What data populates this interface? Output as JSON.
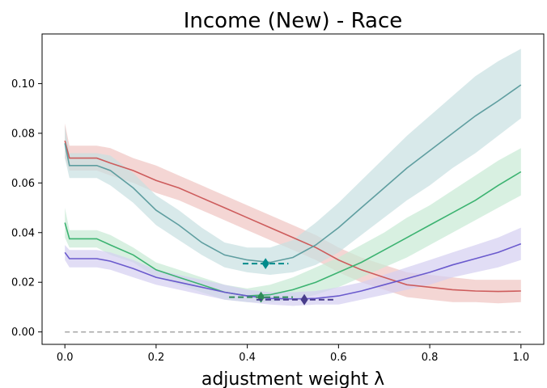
{
  "chart_data": {
    "type": "line",
    "title": "Income (New) - Race",
    "xlabel": "adjustment weight λ",
    "ylabel": "",
    "xlim": [
      -0.05,
      1.05
    ],
    "ylim": [
      -0.005,
      0.12
    ],
    "xticks": [
      0.0,
      0.2,
      0.4,
      0.6,
      0.8,
      1.0
    ],
    "xtick_labels": [
      "0.0",
      "0.2",
      "0.4",
      "0.6",
      "0.8",
      "1.0"
    ],
    "yticks": [
      0.0,
      0.02,
      0.04,
      0.06,
      0.08,
      0.1
    ],
    "ytick_labels": [
      "0.00",
      "0.02",
      "0.04",
      "0.06",
      "0.08",
      "0.10"
    ],
    "grid": false,
    "series": [
      {
        "color": "#cd5c5c",
        "band": "#f0c4c2",
        "points": [
          [
            0,
            0.077
          ],
          [
            0.01,
            0.07
          ],
          [
            0.03,
            0.07
          ],
          [
            0.07,
            0.07
          ],
          [
            0.1,
            0.068
          ],
          [
            0.15,
            0.065
          ],
          [
            0.2,
            0.061
          ],
          [
            0.25,
            0.058
          ],
          [
            0.3,
            0.054
          ],
          [
            0.35,
            0.05
          ],
          [
            0.4,
            0.046
          ],
          [
            0.45,
            0.042
          ],
          [
            0.5,
            0.038
          ],
          [
            0.55,
            0.034
          ],
          [
            0.6,
            0.029
          ],
          [
            0.65,
            0.025
          ],
          [
            0.7,
            0.022
          ],
          [
            0.75,
            0.019
          ],
          [
            0.8,
            0.018
          ],
          [
            0.85,
            0.017
          ],
          [
            0.9,
            0.0165
          ],
          [
            0.95,
            0.0163
          ],
          [
            1.0,
            0.0165
          ]
        ],
        "upper": [
          [
            0,
            0.084
          ],
          [
            0.01,
            0.075
          ],
          [
            0.03,
            0.075
          ],
          [
            0.07,
            0.075
          ],
          [
            0.1,
            0.074
          ],
          [
            0.15,
            0.07
          ],
          [
            0.2,
            0.067
          ],
          [
            0.25,
            0.063
          ],
          [
            0.3,
            0.059
          ],
          [
            0.35,
            0.055
          ],
          [
            0.4,
            0.051
          ],
          [
            0.45,
            0.047
          ],
          [
            0.5,
            0.043
          ],
          [
            0.55,
            0.039
          ],
          [
            0.6,
            0.034
          ],
          [
            0.65,
            0.03
          ],
          [
            0.7,
            0.027
          ],
          [
            0.75,
            0.024
          ],
          [
            0.8,
            0.023
          ],
          [
            0.85,
            0.022
          ],
          [
            0.9,
            0.021
          ],
          [
            0.95,
            0.021
          ],
          [
            1.0,
            0.021
          ]
        ],
        "lower": [
          [
            0,
            0.07
          ],
          [
            0.01,
            0.065
          ],
          [
            0.03,
            0.065
          ],
          [
            0.07,
            0.065
          ],
          [
            0.1,
            0.063
          ],
          [
            0.15,
            0.06
          ],
          [
            0.2,
            0.056
          ],
          [
            0.25,
            0.053
          ],
          [
            0.3,
            0.049
          ],
          [
            0.35,
            0.045
          ],
          [
            0.4,
            0.041
          ],
          [
            0.45,
            0.037
          ],
          [
            0.5,
            0.033
          ],
          [
            0.55,
            0.029
          ],
          [
            0.6,
            0.024
          ],
          [
            0.65,
            0.02
          ],
          [
            0.7,
            0.017
          ],
          [
            0.75,
            0.014
          ],
          [
            0.8,
            0.013
          ],
          [
            0.85,
            0.012
          ],
          [
            0.9,
            0.012
          ],
          [
            0.95,
            0.0115
          ],
          [
            1.0,
            0.012
          ]
        ]
      },
      {
        "color": "#5f9ea0",
        "band": "#c8e0e1",
        "points": [
          [
            0,
            0.076
          ],
          [
            0.01,
            0.067
          ],
          [
            0.03,
            0.067
          ],
          [
            0.07,
            0.067
          ],
          [
            0.1,
            0.065
          ],
          [
            0.15,
            0.058
          ],
          [
            0.2,
            0.049
          ],
          [
            0.25,
            0.043
          ],
          [
            0.3,
            0.036
          ],
          [
            0.35,
            0.031
          ],
          [
            0.4,
            0.029
          ],
          [
            0.45,
            0.028
          ],
          [
            0.5,
            0.03
          ],
          [
            0.55,
            0.035
          ],
          [
            0.6,
            0.042
          ],
          [
            0.65,
            0.05
          ],
          [
            0.7,
            0.058
          ],
          [
            0.75,
            0.066
          ],
          [
            0.8,
            0.073
          ],
          [
            0.85,
            0.08
          ],
          [
            0.9,
            0.087
          ],
          [
            0.95,
            0.093
          ],
          [
            1.0,
            0.0995
          ]
        ],
        "upper": [
          [
            0,
            0.083
          ],
          [
            0.01,
            0.072
          ],
          [
            0.03,
            0.072
          ],
          [
            0.07,
            0.072
          ],
          [
            0.1,
            0.071
          ],
          [
            0.15,
            0.064
          ],
          [
            0.2,
            0.055
          ],
          [
            0.25,
            0.049
          ],
          [
            0.3,
            0.042
          ],
          [
            0.35,
            0.036
          ],
          [
            0.4,
            0.034
          ],
          [
            0.45,
            0.034
          ],
          [
            0.5,
            0.037
          ],
          [
            0.55,
            0.044
          ],
          [
            0.6,
            0.052
          ],
          [
            0.65,
            0.061
          ],
          [
            0.7,
            0.07
          ],
          [
            0.75,
            0.079
          ],
          [
            0.8,
            0.087
          ],
          [
            0.85,
            0.095
          ],
          [
            0.9,
            0.103
          ],
          [
            0.95,
            0.109
          ],
          [
            1.0,
            0.114
          ]
        ],
        "lower": [
          [
            0,
            0.07
          ],
          [
            0.01,
            0.062
          ],
          [
            0.03,
            0.062
          ],
          [
            0.07,
            0.062
          ],
          [
            0.1,
            0.059
          ],
          [
            0.15,
            0.052
          ],
          [
            0.2,
            0.043
          ],
          [
            0.25,
            0.037
          ],
          [
            0.3,
            0.031
          ],
          [
            0.35,
            0.026
          ],
          [
            0.4,
            0.024
          ],
          [
            0.45,
            0.023
          ],
          [
            0.5,
            0.024
          ],
          [
            0.55,
            0.027
          ],
          [
            0.6,
            0.032
          ],
          [
            0.65,
            0.039
          ],
          [
            0.7,
            0.046
          ],
          [
            0.75,
            0.053
          ],
          [
            0.8,
            0.059
          ],
          [
            0.85,
            0.066
          ],
          [
            0.9,
            0.072
          ],
          [
            0.95,
            0.079
          ],
          [
            1.0,
            0.086
          ]
        ]
      },
      {
        "color": "#3cb371",
        "band": "#c7e9d4",
        "points": [
          [
            0,
            0.044
          ],
          [
            0.01,
            0.0375
          ],
          [
            0.03,
            0.0375
          ],
          [
            0.07,
            0.0375
          ],
          [
            0.1,
            0.035
          ],
          [
            0.15,
            0.031
          ],
          [
            0.2,
            0.025
          ],
          [
            0.25,
            0.022
          ],
          [
            0.3,
            0.019
          ],
          [
            0.35,
            0.016
          ],
          [
            0.4,
            0.0145
          ],
          [
            0.45,
            0.015
          ],
          [
            0.5,
            0.017
          ],
          [
            0.55,
            0.02
          ],
          [
            0.6,
            0.024
          ],
          [
            0.65,
            0.028
          ],
          [
            0.7,
            0.033
          ],
          [
            0.75,
            0.038
          ],
          [
            0.8,
            0.043
          ],
          [
            0.85,
            0.048
          ],
          [
            0.9,
            0.053
          ],
          [
            0.95,
            0.059
          ],
          [
            1.0,
            0.0645
          ]
        ],
        "upper": [
          [
            0,
            0.05
          ],
          [
            0.01,
            0.041
          ],
          [
            0.03,
            0.041
          ],
          [
            0.07,
            0.041
          ],
          [
            0.1,
            0.039
          ],
          [
            0.15,
            0.034
          ],
          [
            0.2,
            0.028
          ],
          [
            0.25,
            0.025
          ],
          [
            0.3,
            0.022
          ],
          [
            0.35,
            0.019
          ],
          [
            0.4,
            0.0175
          ],
          [
            0.45,
            0.019
          ],
          [
            0.5,
            0.022
          ],
          [
            0.55,
            0.026
          ],
          [
            0.6,
            0.03
          ],
          [
            0.65,
            0.035
          ],
          [
            0.7,
            0.04
          ],
          [
            0.75,
            0.046
          ],
          [
            0.8,
            0.051
          ],
          [
            0.85,
            0.057
          ],
          [
            0.9,
            0.063
          ],
          [
            0.95,
            0.069
          ],
          [
            1.0,
            0.074
          ]
        ],
        "lower": [
          [
            0,
            0.038
          ],
          [
            0.01,
            0.034
          ],
          [
            0.03,
            0.034
          ],
          [
            0.07,
            0.034
          ],
          [
            0.1,
            0.031
          ],
          [
            0.15,
            0.028
          ],
          [
            0.2,
            0.022
          ],
          [
            0.25,
            0.019
          ],
          [
            0.3,
            0.016
          ],
          [
            0.35,
            0.013
          ],
          [
            0.4,
            0.012
          ],
          [
            0.45,
            0.012
          ],
          [
            0.5,
            0.013
          ],
          [
            0.55,
            0.015
          ],
          [
            0.6,
            0.018
          ],
          [
            0.65,
            0.022
          ],
          [
            0.7,
            0.026
          ],
          [
            0.75,
            0.03
          ],
          [
            0.8,
            0.035
          ],
          [
            0.85,
            0.04
          ],
          [
            0.9,
            0.045
          ],
          [
            0.95,
            0.05
          ],
          [
            1.0,
            0.055
          ]
        ]
      },
      {
        "color": "#6a5acd",
        "band": "#d4cff1",
        "points": [
          [
            0,
            0.032
          ],
          [
            0.01,
            0.0295
          ],
          [
            0.03,
            0.0295
          ],
          [
            0.07,
            0.0295
          ],
          [
            0.1,
            0.0285
          ],
          [
            0.15,
            0.0255
          ],
          [
            0.2,
            0.022
          ],
          [
            0.25,
            0.02
          ],
          [
            0.3,
            0.018
          ],
          [
            0.35,
            0.016
          ],
          [
            0.4,
            0.0145
          ],
          [
            0.45,
            0.0135
          ],
          [
            0.5,
            0.0133
          ],
          [
            0.55,
            0.0135
          ],
          [
            0.6,
            0.0145
          ],
          [
            0.65,
            0.0165
          ],
          [
            0.7,
            0.019
          ],
          [
            0.75,
            0.0215
          ],
          [
            0.8,
            0.024
          ],
          [
            0.85,
            0.027
          ],
          [
            0.9,
            0.0295
          ],
          [
            0.95,
            0.032
          ],
          [
            1.0,
            0.0355
          ]
        ],
        "upper": [
          [
            0,
            0.035
          ],
          [
            0.01,
            0.033
          ],
          [
            0.03,
            0.033
          ],
          [
            0.07,
            0.033
          ],
          [
            0.1,
            0.032
          ],
          [
            0.15,
            0.029
          ],
          [
            0.2,
            0.025
          ],
          [
            0.25,
            0.023
          ],
          [
            0.3,
            0.021
          ],
          [
            0.35,
            0.019
          ],
          [
            0.4,
            0.017
          ],
          [
            0.45,
            0.016
          ],
          [
            0.5,
            0.016
          ],
          [
            0.55,
            0.0165
          ],
          [
            0.6,
            0.018
          ],
          [
            0.65,
            0.02
          ],
          [
            0.7,
            0.023
          ],
          [
            0.75,
            0.026
          ],
          [
            0.8,
            0.029
          ],
          [
            0.85,
            0.032
          ],
          [
            0.9,
            0.035
          ],
          [
            0.95,
            0.038
          ],
          [
            1.0,
            0.042
          ]
        ],
        "lower": [
          [
            0,
            0.029
          ],
          [
            0.01,
            0.026
          ],
          [
            0.03,
            0.026
          ],
          [
            0.07,
            0.026
          ],
          [
            0.1,
            0.025
          ],
          [
            0.15,
            0.022
          ],
          [
            0.2,
            0.019
          ],
          [
            0.25,
            0.017
          ],
          [
            0.3,
            0.015
          ],
          [
            0.35,
            0.013
          ],
          [
            0.4,
            0.012
          ],
          [
            0.45,
            0.011
          ],
          [
            0.5,
            0.0105
          ],
          [
            0.55,
            0.011
          ],
          [
            0.6,
            0.011
          ],
          [
            0.65,
            0.013
          ],
          [
            0.7,
            0.015
          ],
          [
            0.75,
            0.017
          ],
          [
            0.8,
            0.019
          ],
          [
            0.85,
            0.022
          ],
          [
            0.9,
            0.024
          ],
          [
            0.95,
            0.026
          ],
          [
            1.0,
            0.029
          ]
        ]
      }
    ],
    "baseline": {
      "y": 0.0,
      "color": "#aaaaaa",
      "style": "dashed"
    },
    "minima": [
      {
        "x": 0.44,
        "y": 0.0275,
        "color": "#008b8b",
        "range": [
          0.39,
          0.49
        ]
      },
      {
        "x": 0.43,
        "y": 0.014,
        "color": "#2e8b57",
        "range": [
          0.36,
          0.5
        ]
      },
      {
        "x": 0.525,
        "y": 0.013,
        "color": "#483d8b",
        "range": [
          0.42,
          0.59
        ]
      }
    ]
  }
}
